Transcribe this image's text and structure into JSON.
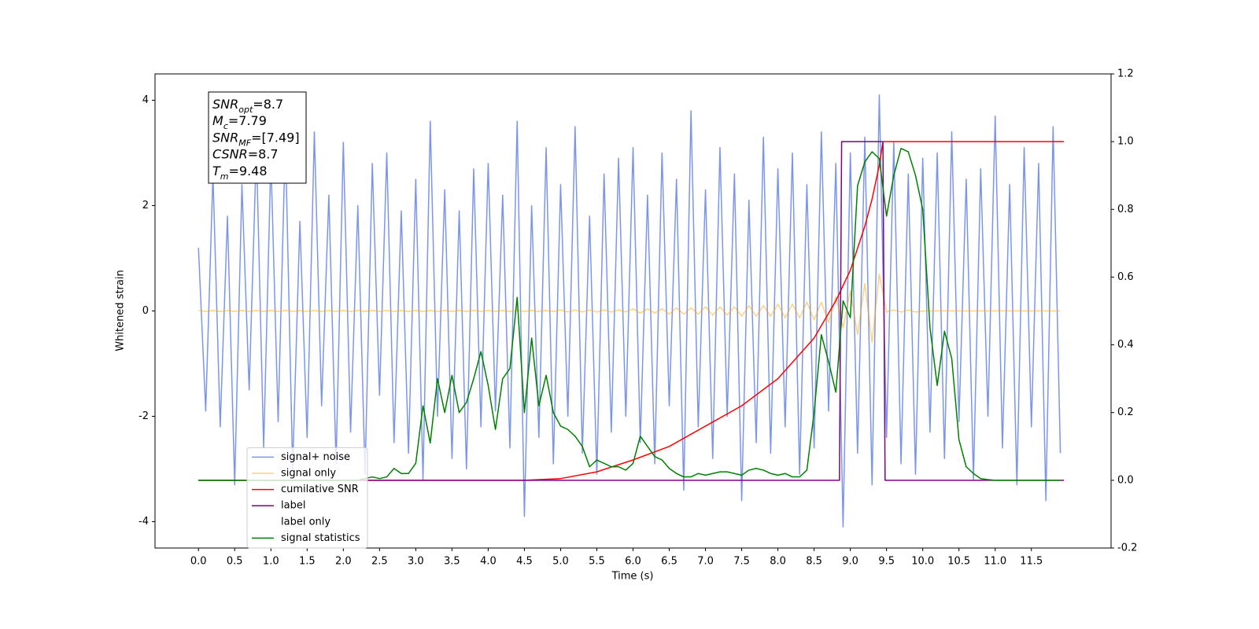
{
  "chart_data": {
    "type": "line",
    "xlabel": "Time (s)",
    "ylabel": "Whitened strain",
    "xlim": [
      -0.6,
      12.6
    ],
    "ylim": [
      -4.5,
      4.5
    ],
    "y2lim": [
      -0.2,
      1.2
    ],
    "xticks": [
      {
        "value": 0,
        "label": "0.0"
      },
      0.5,
      {
        "value": 1,
        "label": "1.0"
      },
      1.5,
      {
        "value": 2,
        "label": "2.0"
      },
      2.5,
      {
        "value": 3,
        "label": "3.0"
      },
      3.5,
      {
        "value": 4,
        "label": "4.0"
      },
      4.5,
      {
        "value": 5,
        "label": "5.0"
      },
      5.5,
      {
        "value": 6,
        "label": "6.0"
      },
      6.5,
      {
        "value": 7,
        "label": "7.0"
      },
      7.5,
      {
        "value": 8,
        "label": "8.0"
      },
      8.5,
      {
        "value": 9,
        "label": "9.0"
      },
      9.5,
      {
        "value": 10,
        "label": "10.0"
      },
      10.5,
      {
        "value": 11,
        "label": "11.0"
      },
      11.5
    ],
    "yticks": [
      -4,
      -2,
      0,
      2,
      4
    ],
    "y2ticks": [
      -0.2,
      {
        "value": 0,
        "label": "0.0"
      },
      0.2,
      0.4,
      0.6,
      0.8,
      {
        "value": 1,
        "label": "1.0"
      },
      1.2
    ],
    "annotation": [
      {
        "base": "SNR",
        "sub": "opt",
        "text": "=8.7"
      },
      {
        "base": "M",
        "sub": "c",
        "text": "=7.79"
      },
      {
        "base": "SNR",
        "sub": "MF",
        "text": "=[7.49]"
      },
      {
        "base": "CSNR",
        "sub": "",
        "text": "=8.7"
      },
      {
        "base": "T",
        "sub": "m",
        "text": "=9.48"
      }
    ],
    "legend": "lower left",
    "x": [
      0,
      0.1,
      0.2,
      0.3,
      0.4,
      0.5,
      0.6,
      0.7,
      0.8,
      0.9,
      1,
      1.1,
      1.2,
      1.3,
      1.4,
      1.5,
      1.6,
      1.7,
      1.8,
      1.9,
      2,
      2.1,
      2.2,
      2.3,
      2.4,
      2.5,
      2.6,
      2.7,
      2.8,
      2.9,
      3,
      3.1,
      3.2,
      3.3,
      3.4,
      3.5,
      3.6,
      3.7,
      3.8,
      3.9,
      4,
      4.1,
      4.2,
      4.3,
      4.4,
      4.5,
      4.6,
      4.7,
      4.8,
      4.9,
      5,
      5.1,
      5.2,
      5.3,
      5.4,
      5.5,
      5.6,
      5.7,
      5.8,
      5.9,
      6,
      6.1,
      6.2,
      6.3,
      6.4,
      6.5,
      6.6,
      6.7,
      6.8,
      6.9,
      7,
      7.1,
      7.2,
      7.3,
      7.4,
      7.5,
      7.6,
      7.7,
      7.8,
      7.9,
      8,
      8.1,
      8.2,
      8.3,
      8.4,
      8.5,
      8.6,
      8.7,
      8.8,
      8.9,
      9,
      9.1,
      9.2,
      9.3,
      9.4,
      9.5,
      9.6,
      9.7,
      9.8,
      9.9,
      10,
      10.1,
      10.2,
      10.3,
      10.4,
      10.5,
      10.6,
      10.7,
      10.8,
      10.9,
      11,
      11.1,
      11.2,
      11.3,
      11.4,
      11.5,
      11.6,
      11.7,
      11.8,
      11.9
    ],
    "series": [
      {
        "name": "signal+ noise",
        "color": "#7b96e8",
        "axis": "y",
        "values": [
          1.2,
          -1.9,
          2.6,
          -2.2,
          1.8,
          -3.3,
          2.4,
          -1.5,
          3.1,
          -2.6,
          2.9,
          -2.1,
          3.3,
          -3.0,
          1.7,
          -2.4,
          3.4,
          -1.8,
          2.2,
          -2.9,
          3.2,
          -2.3,
          2.0,
          -3.1,
          2.8,
          -1.6,
          3.0,
          -2.5,
          1.9,
          -2.7,
          2.5,
          -3.2,
          3.6,
          -2.0,
          2.3,
          -2.8,
          1.9,
          -3.0,
          2.7,
          -2.2,
          2.8,
          -1.9,
          2.2,
          -2.6,
          3.6,
          -3.9,
          2.0,
          -2.4,
          3.1,
          -2.9,
          2.4,
          -2.0,
          3.5,
          -2.7,
          1.8,
          -3.1,
          2.6,
          -2.3,
          2.9,
          -2.0,
          3.1,
          -2.5,
          2.2,
          -2.9,
          3.0,
          -1.8,
          2.5,
          -3.4,
          3.8,
          -2.2,
          2.3,
          -2.8,
          3.1,
          -2.0,
          2.6,
          -3.6,
          2.1,
          -2.5,
          3.3,
          -2.7,
          2.7,
          -2.2,
          3.0,
          -3.1,
          2.4,
          -2.6,
          3.4,
          -1.9,
          2.8,
          -4.1,
          3.0,
          -2.7,
          3.3,
          -3.3,
          4.1,
          -2.4,
          3.2,
          -2.9,
          2.6,
          -3.1,
          2.9,
          -2.3,
          3.0,
          -2.8,
          3.4,
          -2.1,
          2.5,
          -3.2,
          2.7,
          -2.0,
          3.7,
          -2.6,
          2.4,
          -3.3,
          3.1,
          -2.2,
          2.8,
          -3.6,
          3.5,
          -2.7
        ]
      },
      {
        "name": "signal only",
        "color": "#ffa500",
        "alpha": 0.5,
        "axis": "y",
        "values": [
          0.01,
          -0.01,
          0.01,
          -0.01,
          0.01,
          -0.01,
          0.01,
          -0.01,
          0.01,
          -0.01,
          0.01,
          -0.01,
          0.01,
          -0.01,
          0.01,
          -0.01,
          0.01,
          -0.01,
          0.01,
          -0.01,
          0.01,
          -0.01,
          0.01,
          -0.01,
          0.01,
          -0.01,
          0.01,
          -0.01,
          0.01,
          -0.01,
          0.01,
          -0.01,
          0.01,
          -0.01,
          0.01,
          -0.01,
          0.01,
          -0.01,
          0.01,
          -0.01,
          0.01,
          -0.01,
          0.01,
          -0.01,
          0.01,
          -0.01,
          0.01,
          -0.01,
          0.01,
          -0.01,
          0.02,
          -0.02,
          0.02,
          -0.02,
          0.02,
          -0.02,
          0.02,
          -0.02,
          0.02,
          -0.02,
          0.04,
          -0.04,
          0.04,
          -0.04,
          0.04,
          -0.06,
          0.06,
          -0.06,
          0.06,
          -0.06,
          0.08,
          -0.08,
          0.08,
          -0.08,
          0.08,
          -0.1,
          0.1,
          -0.1,
          0.1,
          -0.1,
          0.13,
          -0.13,
          0.13,
          -0.13,
          0.17,
          -0.17,
          0.17,
          -0.22,
          0.27,
          -0.32,
          0.38,
          -0.45,
          0.52,
          -0.6,
          0.7,
          -0.02,
          0.02,
          -0.02,
          0.02,
          -0.02,
          0,
          0,
          0,
          0,
          0,
          0,
          0,
          0,
          0,
          0,
          0,
          0,
          0,
          0,
          0,
          0,
          0,
          0,
          0,
          0
        ]
      },
      {
        "name": "cumilative SNR",
        "color": "#ff0000",
        "axis": "y2",
        "x": [
          0,
          4.5,
          5,
          5.5,
          6,
          6.5,
          7,
          7.5,
          8,
          8.5,
          8.8,
          9.0,
          9.2,
          9.3,
          9.4,
          9.45,
          9.5,
          11.95
        ],
        "values": [
          0,
          0,
          0.005,
          0.025,
          0.06,
          0.1,
          0.16,
          0.22,
          0.3,
          0.42,
          0.53,
          0.62,
          0.75,
          0.83,
          0.93,
          1.0,
          1.0,
          1.0
        ]
      },
      {
        "name": "label",
        "color": "#800080",
        "axis": "y2",
        "x": [
          0,
          8.85,
          8.88,
          9.45,
          9.48,
          11.95
        ],
        "values": [
          0,
          0,
          1,
          1,
          0,
          0
        ]
      },
      {
        "name": "label only",
        "color": "#ffffff",
        "axis": "y2",
        "x": [],
        "values": []
      },
      {
        "name": "signal statistics",
        "color": "#008000",
        "axis": "y2",
        "values": [
          0,
          0,
          0,
          0,
          0,
          0,
          0,
          0,
          0,
          0,
          0,
          0,
          0,
          0,
          0,
          0,
          0,
          0,
          0,
          0,
          0,
          0,
          0,
          0.005,
          0.01,
          0.005,
          0.01,
          0.035,
          0.02,
          0.02,
          0.05,
          0.22,
          0.11,
          0.3,
          0.2,
          0.31,
          0.2,
          0.23,
          0.3,
          0.38,
          0.28,
          0.15,
          0.3,
          0.33,
          0.54,
          0.2,
          0.42,
          0.22,
          0.31,
          0.2,
          0.16,
          0.15,
          0.13,
          0.1,
          0.04,
          0.06,
          0.05,
          0.04,
          0.04,
          0.03,
          0.05,
          0.13,
          0.1,
          0.07,
          0.06,
          0.035,
          0.02,
          0.01,
          0.01,
          0.02,
          0.015,
          0.02,
          0.025,
          0.025,
          0.02,
          0.015,
          0.03,
          0.035,
          0.03,
          0.02,
          0.015,
          0.02,
          0.01,
          0.01,
          0.03,
          0.2,
          0.43,
          0.35,
          0.26,
          0.53,
          0.48,
          0.87,
          0.94,
          0.97,
          0.95,
          0.78,
          0.9,
          0.98,
          0.97,
          0.9,
          0.8,
          0.45,
          0.28,
          0.44,
          0.36,
          0.12,
          0.04,
          0.02,
          0.005,
          0.002,
          0,
          0,
          0,
          0,
          0,
          0,
          0,
          0,
          0,
          0
        ]
      }
    ]
  }
}
